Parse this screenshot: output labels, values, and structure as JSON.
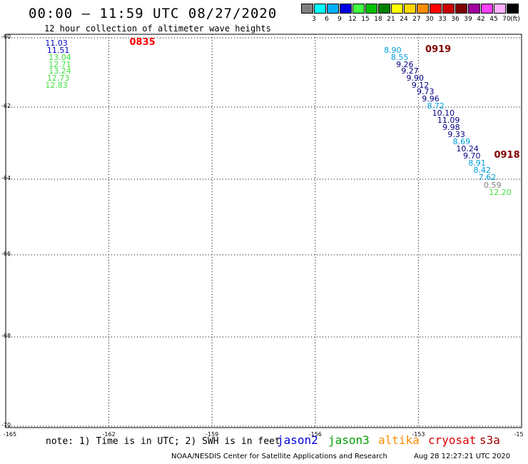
{
  "header": {
    "title": "00:00 – 11:59 UTC 08/27/2020",
    "subtitle": "12 hour collection of altimeter wave heights"
  },
  "legend": {
    "unit_label": "(ft)",
    "bins": [
      {
        "label": "3",
        "color": "#808080"
      },
      {
        "label": "6",
        "color": "#00ffff"
      },
      {
        "label": "9",
        "color": "#00b0ff"
      },
      {
        "label": "12",
        "color": "#0000e0"
      },
      {
        "label": "15",
        "color": "#40ff40"
      },
      {
        "label": "18",
        "color": "#00c000"
      },
      {
        "label": "21",
        "color": "#008000"
      },
      {
        "label": "24",
        "color": "#ffff00"
      },
      {
        "label": "27",
        "color": "#ffd700"
      },
      {
        "label": "30",
        "color": "#ff8c00"
      },
      {
        "label": "33",
        "color": "#ff0000"
      },
      {
        "label": "36",
        "color": "#cc0000"
      },
      {
        "label": "39",
        "color": "#800000"
      },
      {
        "label": "42",
        "color": "#a000a0"
      },
      {
        "label": "45",
        "color": "#ff40ff"
      },
      {
        "label": "70",
        "color": "#ffb0ff"
      },
      {
        "label": "",
        "color": "#000000"
      }
    ]
  },
  "map": {
    "lat_labels": [
      "-60",
      "-62",
      "-64",
      "-66",
      "-68",
      "-70"
    ],
    "lon_labels": [
      "-165",
      "-162",
      "-159",
      "-156",
      "-153",
      "-15"
    ],
    "pass_labels": [
      {
        "text": "0835",
        "color": "#ff0000",
        "lon": -161.4,
        "lat": -60.05
      },
      {
        "text": "0919",
        "color": "#800000",
        "lon": -152.8,
        "lat": -60.25
      },
      {
        "text": "0918",
        "color": "#800000",
        "lon": -150.8,
        "lat": -63.25
      }
    ],
    "wave_heights": [
      {
        "text": "11.03",
        "color": "#0000c0",
        "lon": -163.85,
        "lat": -60.05
      },
      {
        "text": "11.51",
        "color": "#0000c0",
        "lon": -163.8,
        "lat": -60.25
      },
      {
        "text": "13.04",
        "color": "#40e040",
        "lon": -163.75,
        "lat": -60.45
      },
      {
        "text": "12.71",
        "color": "#40e040",
        "lon": -163.75,
        "lat": -60.65
      },
      {
        "text": "13.24",
        "color": "#40e040",
        "lon": -163.75,
        "lat": -60.85
      },
      {
        "text": "12.73",
        "color": "#40e040",
        "lon": -163.8,
        "lat": -61.05
      },
      {
        "text": "12.83",
        "color": "#40e040",
        "lon": -163.85,
        "lat": -61.25
      },
      {
        "text": "8.90",
        "color": "#00a0e0",
        "lon": -154.0,
        "lat": -60.25
      },
      {
        "text": "8.55",
        "color": "#00a0e0",
        "lon": -153.8,
        "lat": -60.45
      },
      {
        "text": "9.26",
        "color": "#000080",
        "lon": -153.65,
        "lat": -60.65
      },
      {
        "text": "9.27",
        "color": "#000080",
        "lon": -153.5,
        "lat": -60.85
      },
      {
        "text": "9.90",
        "color": "#000080",
        "lon": -153.35,
        "lat": -61.05
      },
      {
        "text": "9.12",
        "color": "#000080",
        "lon": -153.2,
        "lat": -61.25
      },
      {
        "text": "9.73",
        "color": "#000080",
        "lon": -153.05,
        "lat": -61.45
      },
      {
        "text": "9.96",
        "color": "#000080",
        "lon": -152.9,
        "lat": -61.65
      },
      {
        "text": "8.72",
        "color": "#00a0e0",
        "lon": -152.75,
        "lat": -61.85
      },
      {
        "text": "10.10",
        "color": "#000080",
        "lon": -152.6,
        "lat": -62.05
      },
      {
        "text": "11.09",
        "color": "#000080",
        "lon": -152.45,
        "lat": -62.25
      },
      {
        "text": "9.98",
        "color": "#000080",
        "lon": -152.3,
        "lat": -62.45
      },
      {
        "text": "9.33",
        "color": "#000080",
        "lon": -152.15,
        "lat": -62.65
      },
      {
        "text": "8.69",
        "color": "#00a0e0",
        "lon": -152.0,
        "lat": -62.85
      },
      {
        "text": "10.24",
        "color": "#000080",
        "lon": -151.9,
        "lat": -63.05
      },
      {
        "text": "9.70",
        "color": "#000080",
        "lon": -151.7,
        "lat": -63.25
      },
      {
        "text": "8.91",
        "color": "#00a0e0",
        "lon": -151.55,
        "lat": -63.45
      },
      {
        "text": "8.42",
        "color": "#00a0e0",
        "lon": -151.4,
        "lat": -63.65
      },
      {
        "text": "7.62",
        "color": "#00a0e0",
        "lon": -151.25,
        "lat": -63.85
      },
      {
        "text": "0.59",
        "color": "#808080",
        "lon": -151.1,
        "lat": -64.05
      },
      {
        "text": "12.20",
        "color": "#40e040",
        "lon": -150.95,
        "lat": -64.25
      }
    ]
  },
  "footer": {
    "note": "note: 1) Time is in UTC; 2) SWH is in feet",
    "satellites": [
      {
        "name": "jason2",
        "color": "#0000e0"
      },
      {
        "name": "jason3",
        "color": "#00a000"
      },
      {
        "name": "altika",
        "color": "#ff8c00"
      },
      {
        "name": "cryosat",
        "color": "#e00000"
      },
      {
        "name": "s3a",
        "color": "#a00000"
      }
    ],
    "credit": "NOAA/NESDIS Center for Satellite Applications and Research",
    "timestamp": "Aug 28 12:27:21 UTC 2020"
  }
}
